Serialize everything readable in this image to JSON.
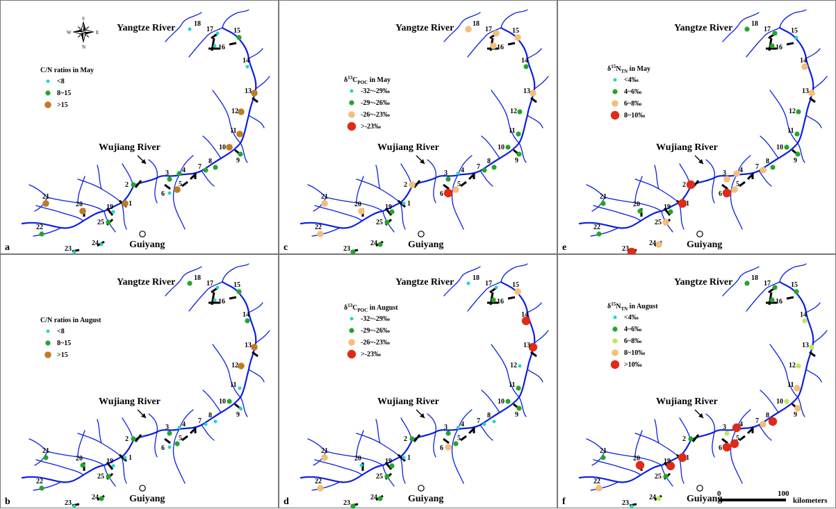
{
  "labels": {
    "yangtze": "Yangtze River",
    "wujiang": "Wujiang River",
    "guiyang": "Guiyang",
    "scale_zero": "0",
    "scale_hundred": "100",
    "scale_unit": "kilometers",
    "compass": {
      "n": "N",
      "s": "S",
      "e": "E",
      "w": "W"
    }
  },
  "colors": {
    "river": "#0b1ee0",
    "cyan": "#19d9c8",
    "green": "#22a52a",
    "lightgreen": "#bde85a",
    "peach": "#f3be7c",
    "brown": "#c07b22",
    "red": "#e02a18",
    "frame": "#777777"
  },
  "panels": [
    {
      "id": "a",
      "legend": {
        "title": "C/N ratios in May",
        "items": [
          {
            "label": "<8",
            "color": "cyan",
            "size": "xs"
          },
          {
            "label": "8~15",
            "color": "green",
            "size": "s"
          },
          {
            "label": ">15",
            "color": "brown",
            "size": "m"
          }
        ]
      },
      "sites": {
        "1": "brown",
        "2": "green",
        "3": "green",
        "4": "green",
        "5": "brown",
        "6": "cyan",
        "7": "green",
        "8": "green",
        "9": "green",
        "10": "brown",
        "11": "brown",
        "12": "brown",
        "13": "brown",
        "14": "cyan",
        "15": "green",
        "16": "cyan",
        "17": "cyan",
        "18": "cyan",
        "19": "cyan",
        "20": "brown",
        "21": "brown",
        "22": "green",
        "23": "cyan",
        "24": "cyan",
        "25": "green"
      }
    },
    {
      "id": "b",
      "legend": {
        "title": "C/N ratios in August",
        "items": [
          {
            "label": "<8",
            "color": "cyan",
            "size": "xs"
          },
          {
            "label": "8~15",
            "color": "green",
            "size": "s"
          },
          {
            "label": ">15",
            "color": "brown",
            "size": "m"
          }
        ]
      },
      "sites": {
        "1": "cyan",
        "2": "green",
        "3": "green",
        "4": "cyan",
        "5": "green",
        "6": "cyan",
        "7": "cyan",
        "8": "cyan",
        "9": "cyan",
        "10": "green",
        "11": "cyan",
        "12": "brown",
        "13": "brown",
        "14": "green",
        "15": "green",
        "16": "cyan",
        "17": "cyan",
        "18": "green",
        "19": "cyan",
        "20": "green",
        "21": "green",
        "22": "green",
        "23": "cyan",
        "24": "green",
        "25": "green"
      }
    },
    {
      "id": "c",
      "legend": {
        "title_main": "δ",
        "title_sup": "13",
        "title_mid": "C",
        "title_sub": "POC",
        "title_tail": " in May",
        "items": [
          {
            "label": "-32~-29‰",
            "color": "cyan",
            "size": "xs"
          },
          {
            "label": "-29~-26‰",
            "color": "green",
            "size": "s"
          },
          {
            "label": "-26~-23‰",
            "color": "peach",
            "size": "m"
          },
          {
            "label": ">-23‰",
            "color": "red",
            "size": "l"
          }
        ]
      },
      "sites": {
        "1": "cyan",
        "2": "peach",
        "3": "green",
        "4": "cyan",
        "5": "peach",
        "6": "red",
        "7": "green",
        "8": "green",
        "9": "green",
        "10": "green",
        "11": "green",
        "12": "green",
        "13": "peach",
        "14": "green",
        "15": "peach",
        "16": "peach",
        "17": "peach",
        "18": "peach",
        "19": "green",
        "20": "peach",
        "21": "peach",
        "22": "peach",
        "23": "green",
        "24": "green",
        "25": "green"
      }
    },
    {
      "id": "d",
      "legend": {
        "title_main": "δ",
        "title_sup": "13",
        "title_mid": "C",
        "title_sub": "POC",
        "title_tail": " in August",
        "items": [
          {
            "label": "-32~-29‰",
            "color": "cyan",
            "size": "xs"
          },
          {
            "label": "-29~-26‰",
            "color": "green",
            "size": "s"
          },
          {
            "label": "-26~-23‰",
            "color": "peach",
            "size": "m"
          },
          {
            "label": ">-23‰",
            "color": "red",
            "size": "l"
          }
        ]
      },
      "sites": {
        "1": "cyan",
        "2": "green",
        "3": "green",
        "4": "cyan",
        "5": "green",
        "6": "peach",
        "7": "cyan",
        "8": "cyan",
        "9": "green",
        "10": "green",
        "11": "green",
        "12": "cyan",
        "13": "red",
        "14": "red",
        "15": "peach",
        "16": "green",
        "17": "cyan",
        "18": "cyan",
        "19": "green",
        "20": "cyan",
        "21": "peach",
        "22": "peach",
        "23": "green",
        "24": "green",
        "25": "green"
      }
    },
    {
      "id": "e",
      "legend": {
        "title_main": "δ",
        "title_sup": "15",
        "title_mid": "N",
        "title_sub": "TN",
        "title_tail": " in May",
        "items": [
          {
            "label": "<4‰",
            "color": "cyan",
            "size": "xs"
          },
          {
            "label": "4~6‰",
            "color": "green",
            "size": "s"
          },
          {
            "label": "6~8‰",
            "color": "peach",
            "size": "m"
          },
          {
            "label": "8~10‰",
            "color": "red",
            "size": "l"
          }
        ]
      },
      "sites": {
        "1": "red",
        "2": "red",
        "3": "peach",
        "4": "peach",
        "5": "peach",
        "6": "red",
        "7": "peach",
        "8": "green",
        "9": "green",
        "10": "green",
        "11": "green",
        "12": "green",
        "13": "peach",
        "14": "peach",
        "15": "cyan",
        "16": "green",
        "17": "green",
        "18": "green",
        "19": "green",
        "20": "green",
        "21": "green",
        "22": "green",
        "23": "red",
        "24": "peach",
        "25": "peach"
      }
    },
    {
      "id": "f",
      "legend": {
        "title_main": "δ",
        "title_sup": "15",
        "title_mid": "N",
        "title_sub": "TN",
        "title_tail": " in August",
        "items": [
          {
            "label": "<4‰",
            "color": "cyan",
            "size": "xs"
          },
          {
            "label": "4~6‰",
            "color": "green",
            "size": "s"
          },
          {
            "label": "6~8‰",
            "color": "lightgreen",
            "size": "s"
          },
          {
            "label": "8~10‰",
            "color": "peach",
            "size": "m"
          },
          {
            "label": ">10‰",
            "color": "red",
            "size": "l"
          }
        ]
      },
      "sites": {
        "1": "red",
        "2": "green",
        "3": "lightgreen",
        "4": "red",
        "5": "red",
        "6": "red",
        "7": "peach",
        "8": "red",
        "9": "peach",
        "10": "lightgreen",
        "11": "peach",
        "12": "lightgreen",
        "13": "lightgreen",
        "14": "lightgreen",
        "15": "green",
        "16": "green",
        "17": "green",
        "18": "green",
        "19": "red",
        "20": "red",
        "21": "green",
        "22": "peach",
        "23": "cyan",
        "24": "lightgreen",
        "25": "green"
      }
    }
  ]
}
